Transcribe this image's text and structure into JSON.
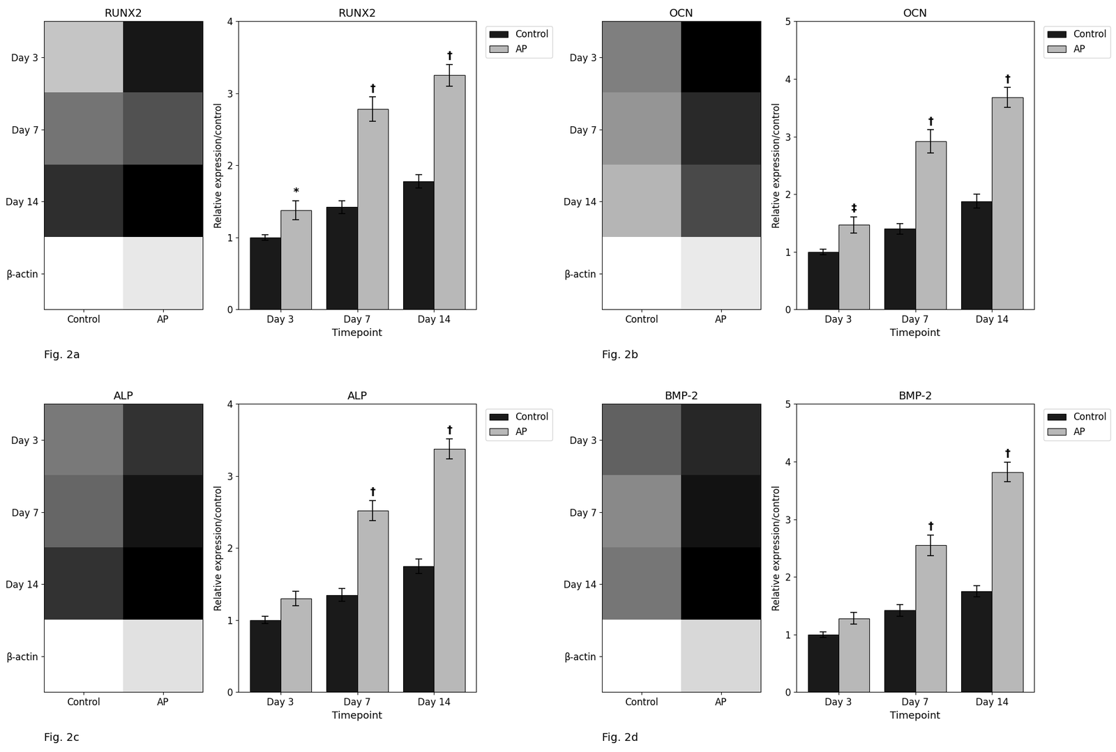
{
  "chart_data": [
    {
      "type": "heatmap",
      "title": "RUNX2",
      "caption": "Fig. 2a",
      "categories": [
        "Control",
        "AP"
      ],
      "rows": [
        "Day 3",
        "Day 7",
        "Day 14",
        "β-actin"
      ],
      "cells": [
        [
          0.55,
          0.7
        ],
        [
          0.62,
          0.65
        ],
        [
          0.68,
          0.72
        ],
        [
          0.5,
          0.52
        ]
      ]
    },
    {
      "type": "bar",
      "title": "RUNX2",
      "xlabel": "Timepoint",
      "ylabel": "Relative expression/control",
      "categories": [
        "Day 3",
        "Day 7",
        "Day 14"
      ],
      "ylim": [
        0,
        4
      ],
      "yticks": [
        0,
        1,
        2,
        3,
        4
      ],
      "legend": "upper left",
      "series": [
        {
          "name": "Control",
          "color": "#1a1a1a",
          "values": [
            1.0,
            1.42,
            1.78
          ],
          "errors": [
            0.04,
            0.09,
            0.09
          ]
        },
        {
          "name": "AP",
          "color": "#b8b8b8",
          "values": [
            1.38,
            2.78,
            3.25
          ],
          "errors": [
            0.13,
            0.17,
            0.15
          ],
          "annotations": [
            "*",
            "†",
            "†"
          ]
        }
      ]
    },
    {
      "type": "heatmap",
      "title": "OCN",
      "caption": "Fig. 2b",
      "categories": [
        "Control",
        "AP"
      ],
      "rows": [
        "Day 3",
        "Day 7",
        "Day 14",
        "β-actin"
      ],
      "cells": [
        [
          0.6,
          0.72
        ],
        [
          0.58,
          0.68
        ],
        [
          0.55,
          0.65
        ],
        [
          0.48,
          0.5
        ]
      ]
    },
    {
      "type": "bar",
      "title": "OCN",
      "xlabel": "Timepoint",
      "ylabel": "Relative expression/control",
      "categories": [
        "Day 3",
        "Day 7",
        "Day 14"
      ],
      "ylim": [
        0,
        5
      ],
      "yticks": [
        0,
        1,
        2,
        3,
        4,
        5
      ],
      "legend": "upper left",
      "series": [
        {
          "name": "Control",
          "color": "#1a1a1a",
          "values": [
            1.0,
            1.4,
            1.88
          ],
          "errors": [
            0.05,
            0.09,
            0.12
          ]
        },
        {
          "name": "AP",
          "color": "#b8b8b8",
          "values": [
            1.47,
            2.92,
            3.68
          ],
          "errors": [
            0.14,
            0.2,
            0.17
          ],
          "annotations": [
            "‡",
            "†",
            "†"
          ]
        }
      ]
    },
    {
      "type": "heatmap",
      "title": "ALP",
      "caption": "Fig. 2c",
      "categories": [
        "Control",
        "AP"
      ],
      "rows": [
        "Day 3",
        "Day 7",
        "Day 14",
        "β-actin"
      ],
      "cells": [
        [
          0.58,
          0.65
        ],
        [
          0.6,
          0.68
        ],
        [
          0.65,
          0.7
        ],
        [
          0.45,
          0.48
        ]
      ]
    },
    {
      "type": "bar",
      "title": "ALP",
      "xlabel": "Timepoint",
      "ylabel": "Relative expression/control",
      "categories": [
        "Day 3",
        "Day 7",
        "Day 14"
      ],
      "ylim": [
        0,
        4
      ],
      "yticks": [
        0,
        1,
        2,
        3,
        4
      ],
      "legend": "upper left",
      "series": [
        {
          "name": "Control",
          "color": "#1a1a1a",
          "values": [
            1.0,
            1.35,
            1.75
          ],
          "errors": [
            0.05,
            0.09,
            0.1
          ]
        },
        {
          "name": "AP",
          "color": "#b8b8b8",
          "values": [
            1.3,
            2.52,
            3.38
          ],
          "errors": [
            0.1,
            0.14,
            0.14
          ],
          "annotations": [
            null,
            "†",
            "†"
          ]
        }
      ]
    },
    {
      "type": "heatmap",
      "title": "BMP-2",
      "caption": "Fig. 2d",
      "categories": [
        "Control",
        "AP"
      ],
      "rows": [
        "Day 3",
        "Day 7",
        "Day 14",
        "β-actin"
      ],
      "cells": [
        [
          0.62,
          0.68
        ],
        [
          0.58,
          0.7
        ],
        [
          0.6,
          0.72
        ],
        [
          0.46,
          0.5
        ]
      ]
    },
    {
      "type": "bar",
      "title": "BMP-2",
      "xlabel": "Timepoint",
      "ylabel": "Relative expression/control",
      "categories": [
        "Day 3",
        "Day 7",
        "Day 14"
      ],
      "ylim": [
        0,
        5
      ],
      "yticks": [
        0,
        1,
        2,
        3,
        4,
        5
      ],
      "legend": "upper left",
      "series": [
        {
          "name": "Control",
          "color": "#1a1a1a",
          "values": [
            1.0,
            1.42,
            1.75
          ],
          "errors": [
            0.05,
            0.1,
            0.1
          ]
        },
        {
          "name": "AP",
          "color": "#b8b8b8",
          "values": [
            1.28,
            2.55,
            3.82
          ],
          "errors": [
            0.1,
            0.18,
            0.17
          ],
          "annotations": [
            null,
            "†",
            "†"
          ]
        }
      ]
    }
  ]
}
